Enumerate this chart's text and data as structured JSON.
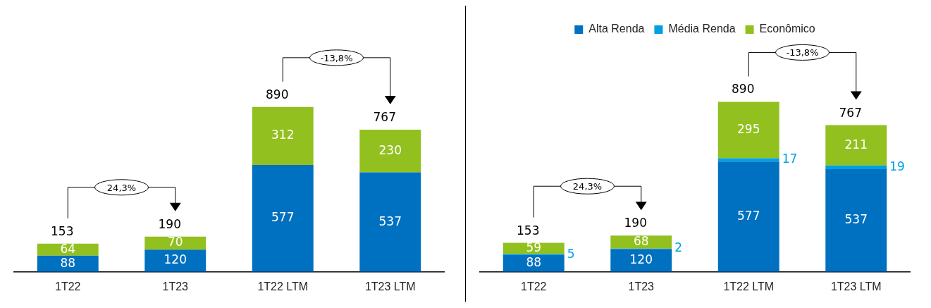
{
  "chart_data": [
    {
      "type": "bar",
      "stacked": true,
      "categories": [
        "1T22",
        "1T23",
        "1T22 LTM",
        "1T23 LTM"
      ],
      "series": [
        {
          "color": "#0070c0",
          "values": [
            88,
            120,
            577,
            537
          ]
        },
        {
          "color": "#92c01f",
          "values": [
            64,
            70,
            312,
            230
          ]
        }
      ],
      "data_labels": true,
      "totals": [
        "153",
        "190",
        "890",
        "767"
      ],
      "annotations": [
        "24,3%",
        "-13,8%"
      ]
    },
    {
      "type": "bar",
      "stacked": true,
      "categories": [
        "1T22",
        "1T23",
        "1T22 LTM",
        "1T23 LTM"
      ],
      "series": [
        {
          "name": "Alta Renda",
          "color": "#0070c0",
          "values": [
            88,
            120,
            577,
            537
          ]
        },
        {
          "name": "Média Renda",
          "color": "#00a0e0",
          "values": [
            5,
            2,
            17,
            19
          ]
        },
        {
          "name": "Econômico",
          "color": "#92c01f",
          "values": [
            59,
            68,
            295,
            211
          ]
        }
      ],
      "legend": "top",
      "data_labels": true,
      "totals": [
        "153",
        "190",
        "890",
        "767"
      ],
      "annotations": [
        "24,3%",
        "-13,8%"
      ]
    }
  ]
}
